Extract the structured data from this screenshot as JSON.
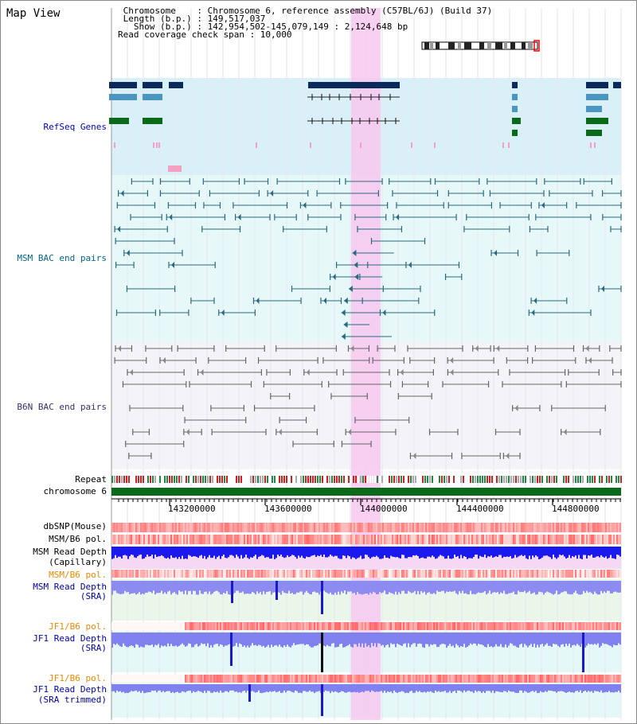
{
  "title": "Map View",
  "info": {
    "line1": " Chromosome    : Chromosome 6, reference assembly (C57BL/6J) (Build 37)",
    "line2": " Length (b.p.) : 149,517,037",
    "line3": "   Show (b.p.) : 142,954,502-145,079,149 : 2,124,648 bp",
    "line4": "Read coverage check span : 10,000"
  },
  "tracks": {
    "refseq": "RefSeq Genes",
    "msm_bac": "MSM BAC end pairs",
    "b6n_bac": "B6N BAC end pairs",
    "repeat": "Repeat",
    "chromosome": "chromosome 6",
    "dbsnp": "dbSNP(Mouse)",
    "msm_b6_pol": "MSM/B6 pol.",
    "msm_read_depth_cap_1": "MSM Read Depth",
    "msm_read_depth_cap_2": "(Capillary)",
    "msm_b6_pol_2": "MSM/B6 pol.",
    "msm_read_depth_sra_1": "MSM Read Depth",
    "msm_read_depth_sra_2": "(SRA)",
    "jf1_b6_pol": "JF1/B6 pol.",
    "jf1_read_depth_sra_1": "JF1 Read Depth",
    "jf1_read_depth_sra_2": "(SRA)",
    "jf1_b6_pol_2": "JF1/B6 pol.",
    "jf1_read_depth_trim_1": "JF1 Read Depth",
    "jf1_read_depth_trim_2": "(SRA trimmed)"
  },
  "axis": {
    "ticks": [
      "143200000",
      "143600000",
      "144000000",
      "144400000",
      "144800000"
    ]
  },
  "colors": {
    "refseq_label": "#0000cc",
    "msm_label": "#006688",
    "b6n_label": "#333366",
    "orange_label": "#ee8800",
    "blue_label": "#0000aa",
    "highlight": "#f7c8f0"
  }
}
